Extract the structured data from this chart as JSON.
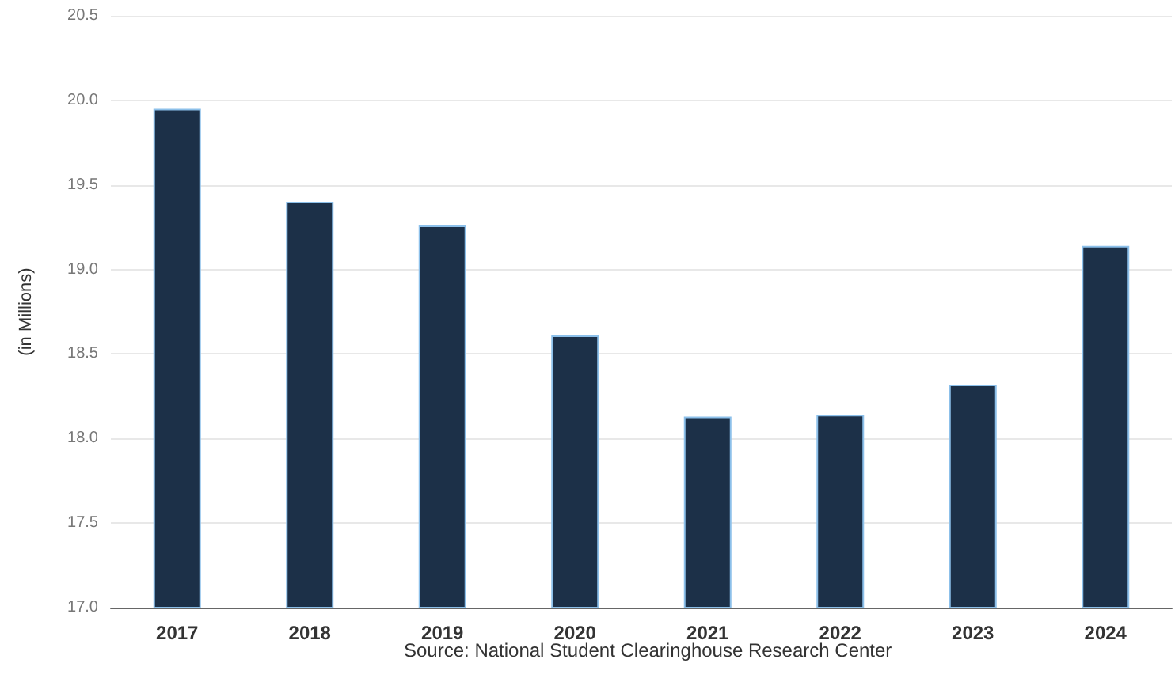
{
  "chart_data": {
    "type": "bar",
    "ylabel": "(in Millions)",
    "categories": [
      "2017",
      "2018",
      "2019",
      "2020",
      "2021",
      "2022",
      "2023",
      "2024"
    ],
    "values": [
      19.95,
      19.4,
      19.26,
      18.61,
      18.13,
      18.14,
      18.32,
      19.14
    ],
    "color": "#1c3048",
    "ylim": [
      17.0,
      20.5
    ],
    "yticks": [
      {
        "value": 17.0,
        "label": "17.0"
      },
      {
        "value": 17.5,
        "label": "17.5"
      },
      {
        "value": 18.0,
        "label": "18.0"
      },
      {
        "value": 18.5,
        "label": "18.5"
      },
      {
        "value": 19.0,
        "label": "19.0"
      },
      {
        "value": 19.5,
        "label": "19.5"
      },
      {
        "value": 20.0,
        "label": "20.0"
      },
      {
        "value": 20.5,
        "label": "20.5"
      }
    ],
    "grid": "y",
    "annotations": [
      "Source: National Student Clearinghouse Research Center"
    ]
  }
}
